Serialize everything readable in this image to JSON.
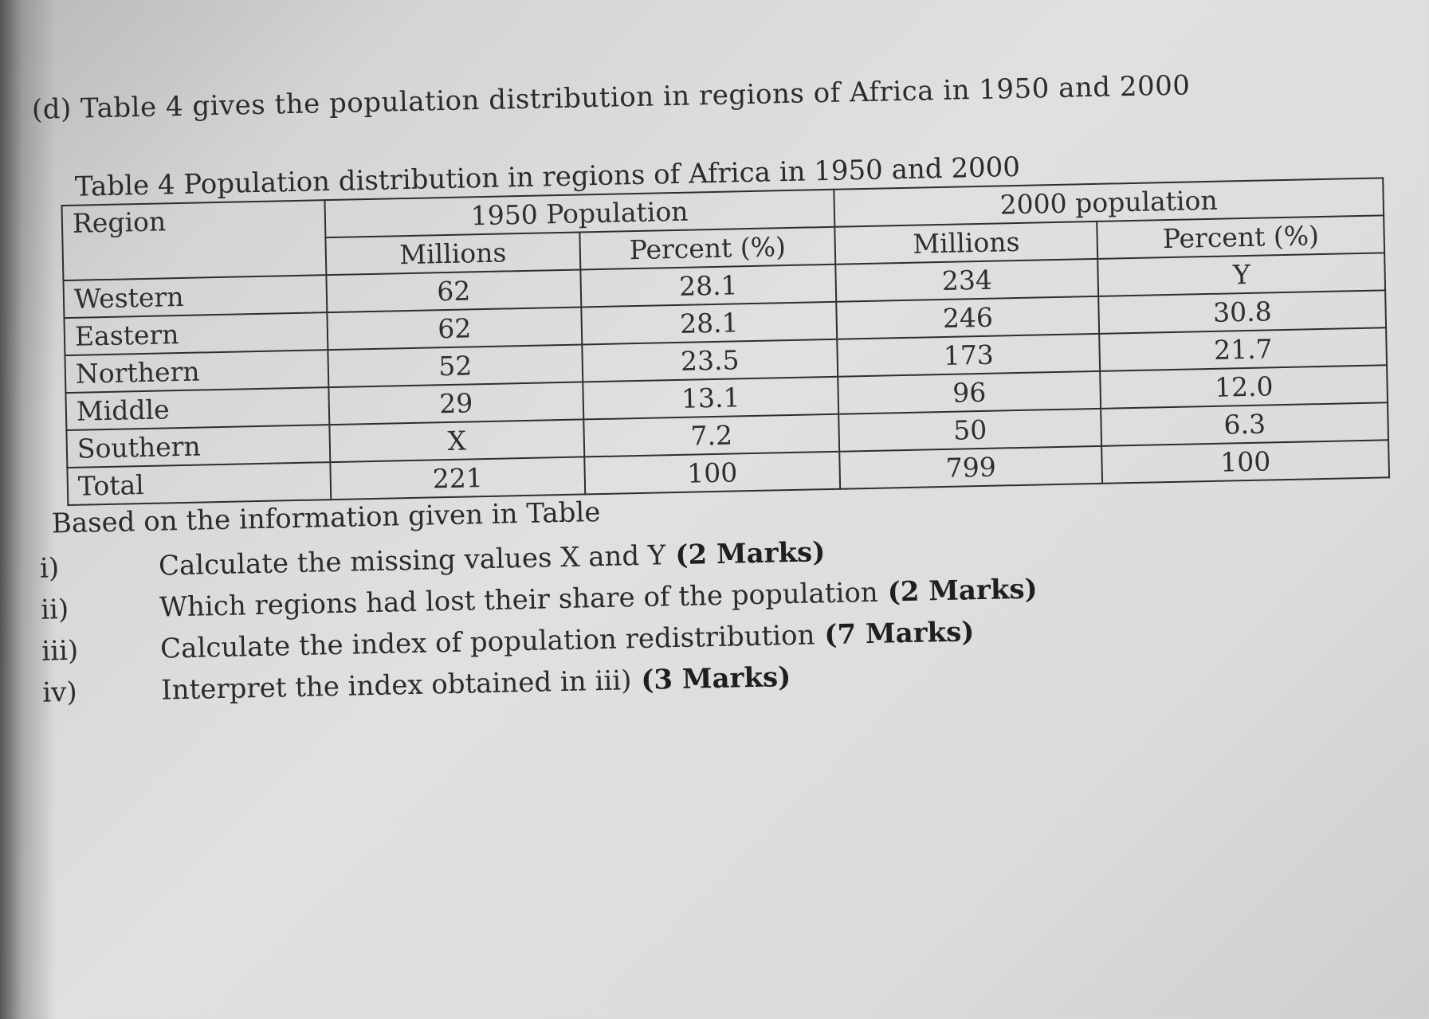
{
  "question": {
    "heading": "(d) Table 4 gives the population distribution in regions of Africa in 1950 and 2000"
  },
  "table": {
    "caption": "Table 4 Population distribution in regions of Africa in 1950 and 2000",
    "header": {
      "region": "Region",
      "group_1950": "1950 Population",
      "group_2000": "2000 population",
      "millions": "Millions",
      "percent": "Percent (%)"
    },
    "rows": [
      {
        "region": "Western",
        "m1950": "62",
        "p1950": "28.1",
        "m2000": "234",
        "p2000": "Y"
      },
      {
        "region": "Eastern",
        "m1950": "62",
        "p1950": "28.1",
        "m2000": "246",
        "p2000": "30.8"
      },
      {
        "region": "Northern",
        "m1950": "52",
        "p1950": "23.5",
        "m2000": "173",
        "p2000": "21.7"
      },
      {
        "region": "Middle",
        "m1950": "29",
        "p1950": "13.1",
        "m2000": "96",
        "p2000": "12.0"
      },
      {
        "region": "Southern",
        "m1950": "X",
        "p1950": "7.2",
        "m2000": "50",
        "p2000": "6.3"
      },
      {
        "region": "Total",
        "m1950": "221",
        "p1950": "100",
        "m2000": "799",
        "p2000": "100"
      }
    ]
  },
  "instruction": "Based on the information given in Table",
  "tasks": [
    {
      "num": "i)",
      "text": "Calculate the missing values X and Y",
      "marks": "(2 Marks)"
    },
    {
      "num": "ii)",
      "text": "Which regions had lost their share of the population",
      "marks": "(2 Marks)"
    },
    {
      "num": "iii)",
      "text": "Calculate the index of population redistribution",
      "marks": "(7 Marks)"
    },
    {
      "num": "iv)",
      "text": "Interpret the index obtained in iii)",
      "marks": "(3 Marks)"
    }
  ]
}
